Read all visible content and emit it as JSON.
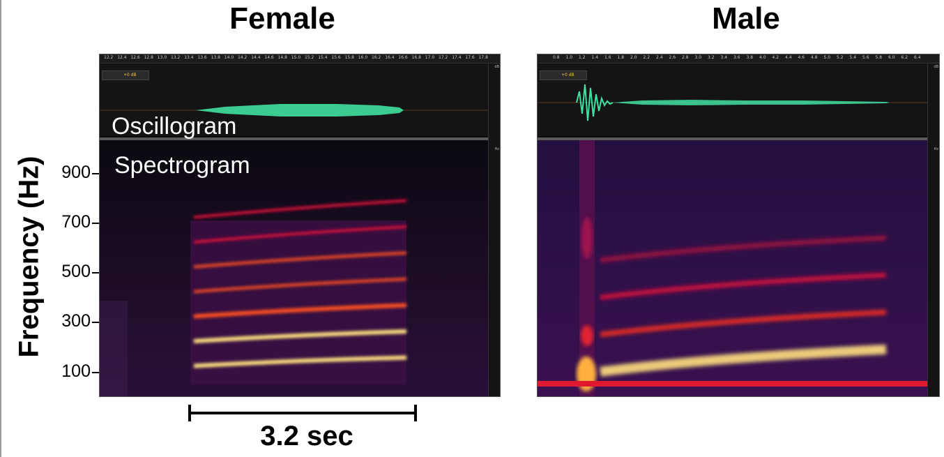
{
  "titles": {
    "female": "Female",
    "male": "Male"
  },
  "y_axis": {
    "label": "Frequency (Hz)",
    "ticks": [
      "900",
      "700",
      "500",
      "300",
      "100"
    ]
  },
  "annotations": {
    "oscillogram": "Oscillogram",
    "spectrogram": "Spectrogram"
  },
  "scale_bar": {
    "label": "3.2 sec"
  },
  "female_panel": {
    "ruler_labels": [
      "12.2",
      "12.4",
      "12.6",
      "12.8",
      "13.0",
      "13.2",
      "13.4",
      "13.6",
      "13.8",
      "14.0",
      "14.2",
      "14.4",
      "14.6",
      "14.8",
      "15.0",
      "15.2",
      "15.4",
      "15.6",
      "15.8",
      "16.0",
      "16.2",
      "16.4",
      "16.6",
      "16.8",
      "17.0",
      "17.2",
      "17.4",
      "17.6",
      "17.8"
    ],
    "gain_label": "+0 dB",
    "harmonics_hz": [
      100,
      200,
      300,
      400,
      500,
      600,
      700
    ]
  },
  "male_panel": {
    "ruler_labels": [
      "0.8",
      "1.0",
      "1.2",
      "1.4",
      "1.6",
      "1.8",
      "2.0",
      "2.2",
      "2.4",
      "2.6",
      "2.8",
      "3.0",
      "3.2",
      "3.4",
      "3.6",
      "3.8",
      "4.0",
      "4.2",
      "4.4",
      "4.6",
      "4.8",
      "5.0",
      "5.2",
      "5.4",
      "5.6",
      "5.8",
      "6.0",
      "6.2",
      "6.4"
    ],
    "gain_label": "+0 dB",
    "harmonics_hz": [
      150,
      300,
      450,
      600
    ]
  },
  "colors": {
    "waveform": "#3fe0a0",
    "spectrogram_low": "#2a0a3a",
    "spectrogram_mid": "#e0103a",
    "spectrogram_high": "#ffe080"
  }
}
